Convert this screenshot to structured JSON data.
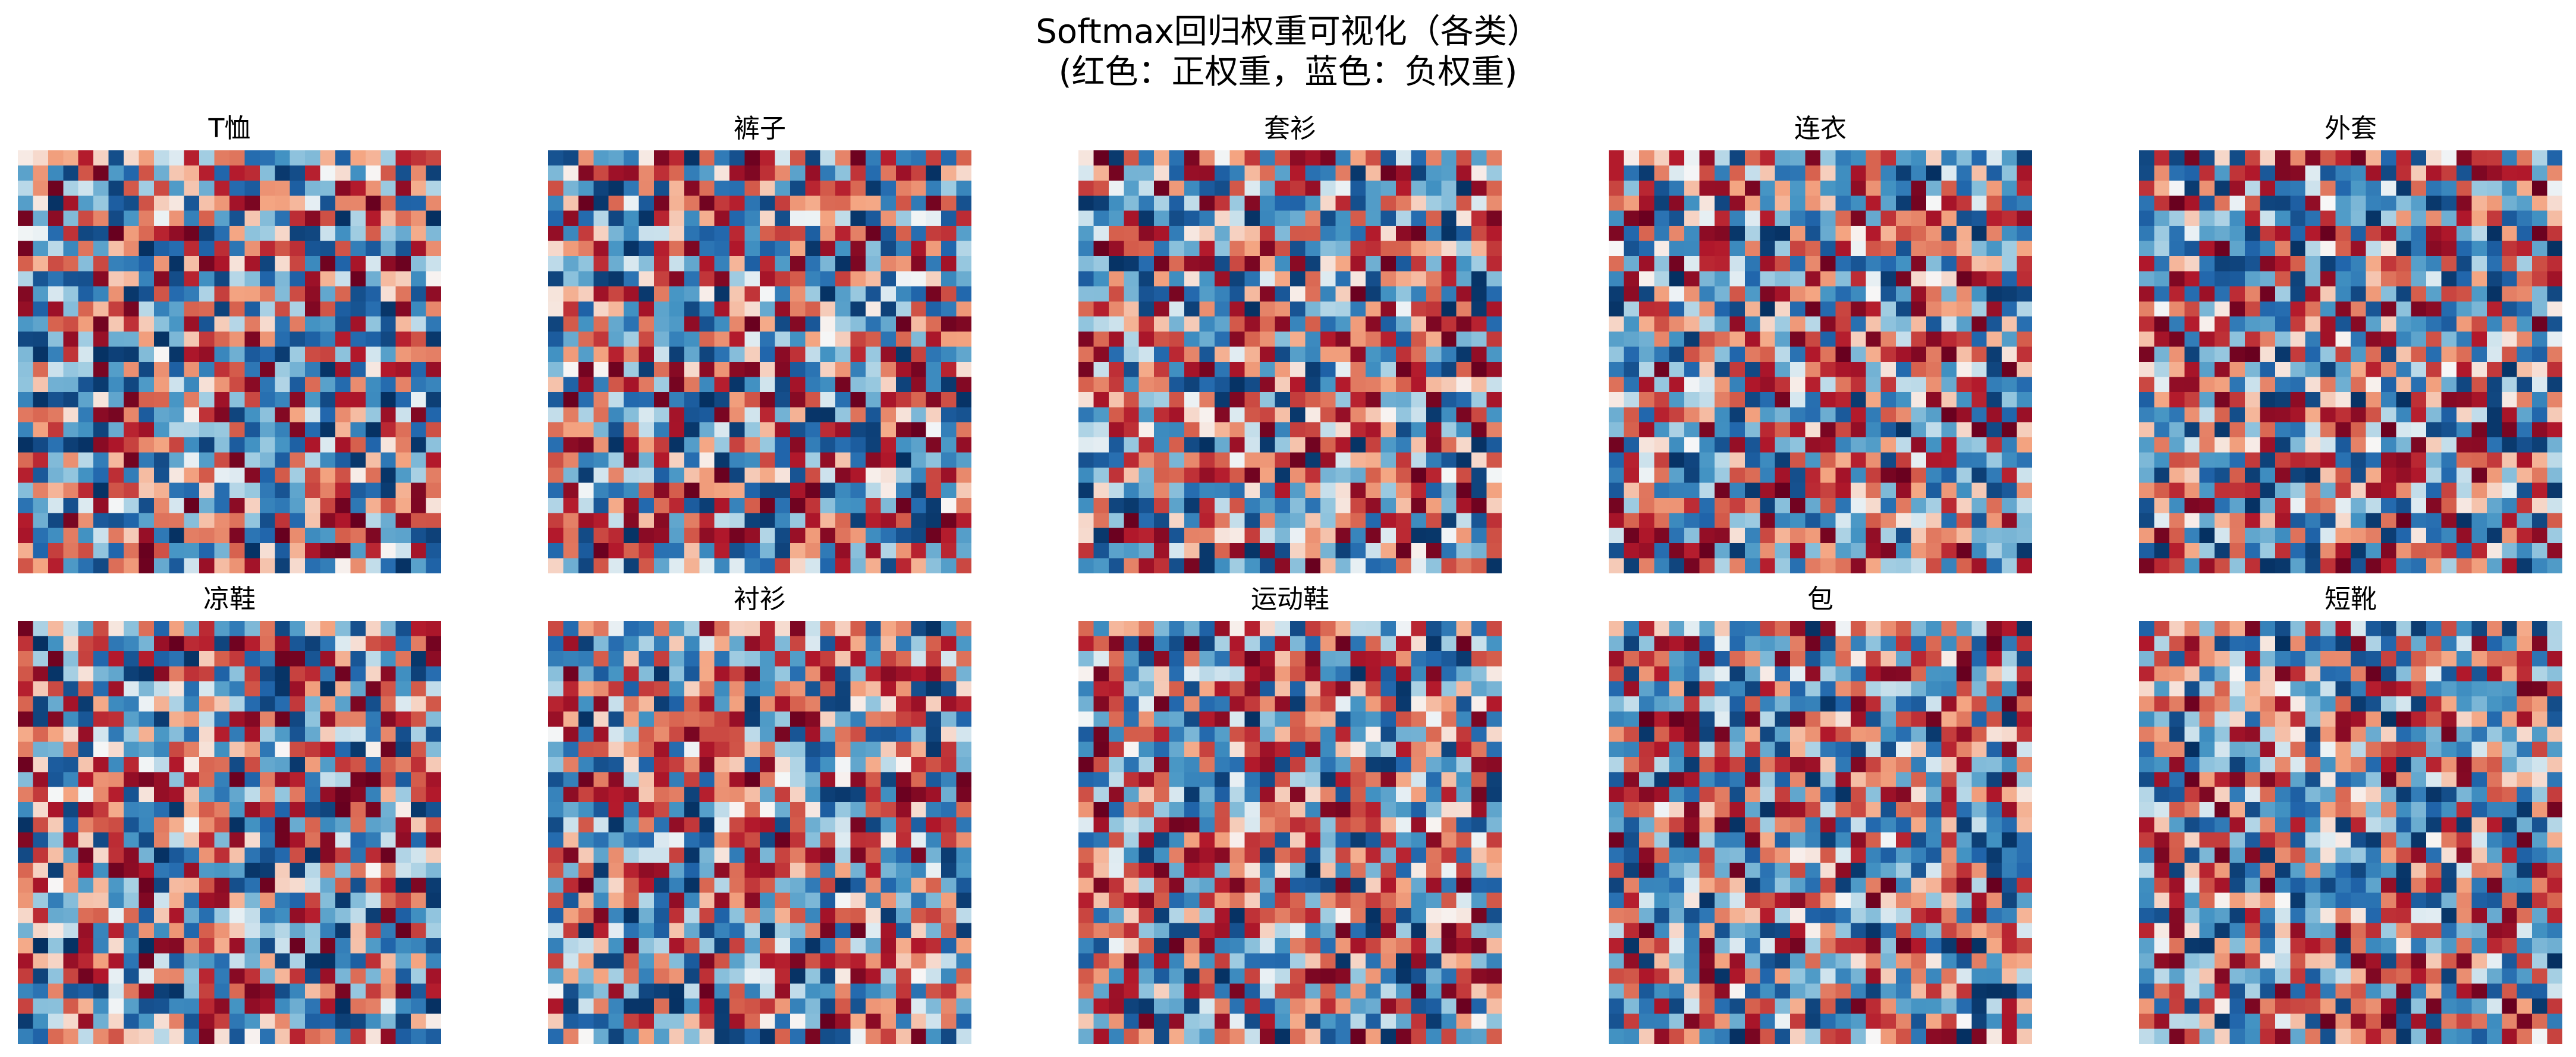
{
  "figure": {
    "title_line1": "Softmax回归权重可视化（各类）",
    "title_line2": "(红色：正权重，蓝色：负权重)"
  },
  "colors": {
    "colormap": "RdBu_r",
    "negative": "#053061",
    "neutral": "#f7f7f7",
    "positive": "#67001f"
  },
  "chart_data": {
    "type": "heatmap",
    "grid": false,
    "colormap": "RdBu_r",
    "rows": 28,
    "cols": 28,
    "value_range": [
      -1,
      1
    ],
    "panels": [
      {
        "title": "T恤",
        "seed": 11
      },
      {
        "title": "裤子",
        "seed": 23
      },
      {
        "title": "套衫",
        "seed": 37
      },
      {
        "title": "连衣",
        "seed": 41
      },
      {
        "title": "外套",
        "seed": 53
      },
      {
        "title": "凉鞋",
        "seed": 67
      },
      {
        "title": "衬衫",
        "seed": 71
      },
      {
        "title": "运动鞋",
        "seed": 83
      },
      {
        "title": "包",
        "seed": 97
      },
      {
        "title": "短靴",
        "seed": 101
      }
    ]
  }
}
